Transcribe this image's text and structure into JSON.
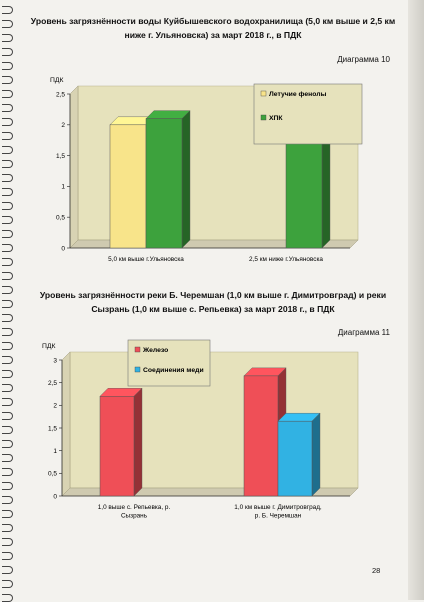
{
  "page": {
    "title1": "Уровень загрязнённости воды Куйбышевского водохранилища (5,0 км выше и 2,5 км ниже г. Ульяновска) за март 2018 г., в ПДК",
    "diag1_label": "Диаграмма 10",
    "title2": "Уровень загрязнённости реки Б. Черемшан (1,0 км выше г. Димитровград) и реки Сызрань (1,0 км выше с. Репьевка) за март 2018 г., в ПДК",
    "diag2_label": "Диаграмма 11",
    "page_number": "28"
  },
  "colors": {
    "phenols": "#f8e48a",
    "hpk": "#3da23d",
    "iron": "#ef4f57",
    "copper": "#31b2e3",
    "plot_bg": "#e6e2bc"
  },
  "chart_data": [
    {
      "type": "bar",
      "ylabel": "ПДК",
      "ylim": [
        0,
        2.5
      ],
      "yticks": [
        "0",
        "0,5",
        "1",
        "1,5",
        "2",
        "2,5"
      ],
      "categories": [
        "5,0 км выше г.Ульяновска",
        "2,5 км ниже г.Ульяновска"
      ],
      "series": [
        {
          "name": "Летучие фенолы",
          "values": [
            2.0,
            null
          ]
        },
        {
          "name": "ХПК",
          "values": [
            2.1,
            1.7
          ]
        }
      ],
      "legend_position": "top-right",
      "style": "3d"
    },
    {
      "type": "bar",
      "ylabel": "ПДК",
      "ylim": [
        0,
        3
      ],
      "yticks": [
        "0",
        "0,5",
        "1",
        "1,5",
        "2",
        "2,5",
        "3"
      ],
      "categories": [
        "1,0 выше с. Репьевка, р. Сызрань",
        "1,0 км выше г. Димитровград, р. Б. Черемшан"
      ],
      "series": [
        {
          "name": "Железо",
          "values": [
            2.2,
            2.65
          ]
        },
        {
          "name": "Соединения меди",
          "values": [
            null,
            1.65
          ]
        }
      ],
      "legend_position": "top-left",
      "style": "3d"
    }
  ]
}
